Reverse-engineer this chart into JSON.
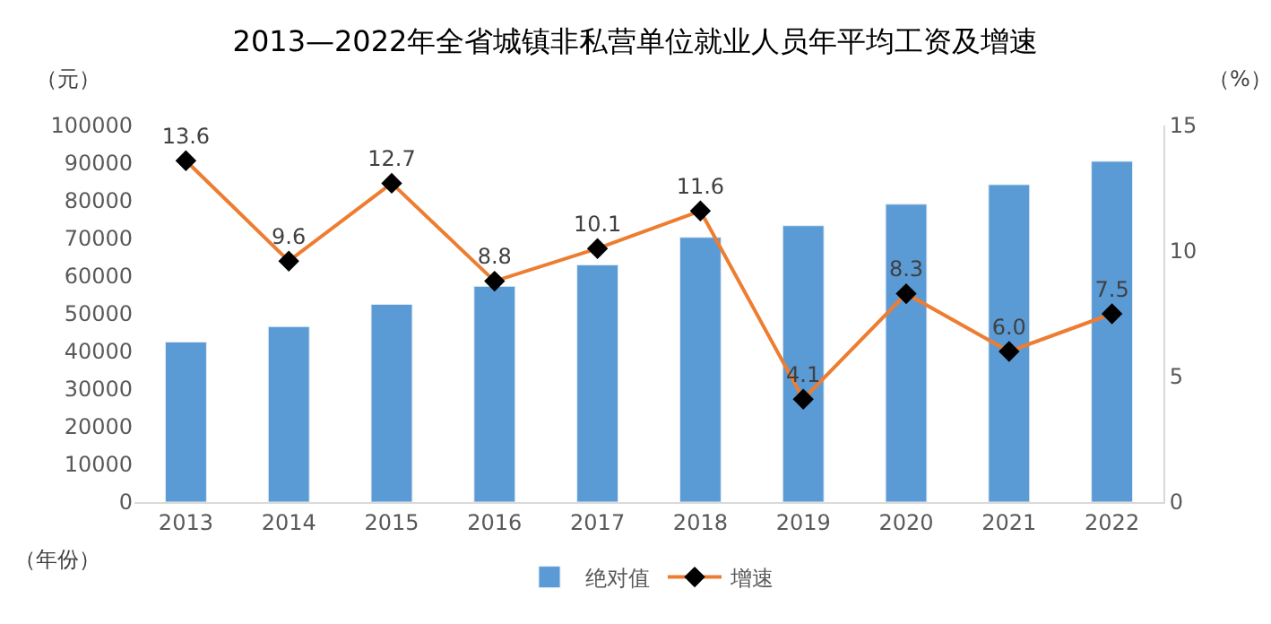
{
  "chart_data": {
    "type": "bar",
    "title": "2013—2022年全省城镇非私营单位就业人员年平均工资及增速",
    "categories": [
      "2013",
      "2014",
      "2015",
      "2016",
      "2017",
      "2018",
      "2019",
      "2020",
      "2021",
      "2022"
    ],
    "series": [
      {
        "name": "绝对值",
        "color": "#5b9bd5",
        "values": [
          42500,
          46600,
          52500,
          57300,
          63000,
          70300,
          73400,
          79100,
          84300,
          90500
        ]
      },
      {
        "name": "增速",
        "type": "line",
        "axis": "y2",
        "color": "#ed7d31",
        "marker": "diamond",
        "values": [
          13.6,
          9.6,
          12.7,
          8.8,
          10.1,
          11.6,
          4.1,
          8.3,
          6.0,
          7.5
        ],
        "value_labels": [
          "13.6",
          "9.6",
          "12.7",
          "8.8",
          "10.1",
          "11.6",
          "4.1",
          "8.3",
          "6.0",
          "7.5"
        ]
      }
    ],
    "xlabel": "（年份）",
    "ylabel": "（元）",
    "y2label": "（%）",
    "ylim": [
      0,
      100000
    ],
    "yticks": [
      0,
      10000,
      20000,
      30000,
      40000,
      50000,
      60000,
      70000,
      80000,
      90000,
      100000
    ],
    "y2lim": [
      0,
      15
    ],
    "y2ticks": [
      0,
      5,
      10,
      15
    ],
    "legend": "bottom"
  }
}
